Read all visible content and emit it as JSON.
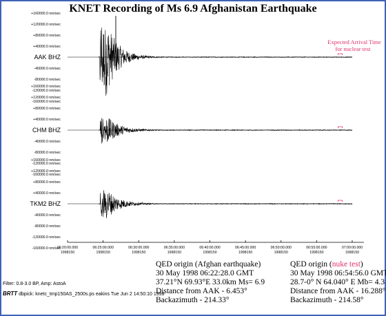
{
  "title": "KNET Recording of Ms 6.9 Afghanistan Earthquake",
  "amplitude_unit_suffix": "nm/sec",
  "colors": {
    "frame": "#3f62b8",
    "trace": "#000000",
    "baseline": "#555555",
    "annotation": "#e0306a"
  },
  "chart_data": {
    "type": "line",
    "title": "KNET Recording of Ms 6.9 Afghanistan Earthquake",
    "y_ticks": [
      "+160000.0",
      "+120000.0",
      "+80000.0",
      "+40000.0",
      "-40000.0",
      "-80000.0",
      "-120000.0",
      "-160000.0"
    ],
    "ylim": [
      -160000,
      160000
    ],
    "x_ticks": [
      {
        "time": "06:20:00.000",
        "day": "1998150"
      },
      {
        "time": "06:25:00.000",
        "day": "1998150"
      },
      {
        "time": "06:30:00.000",
        "day": "1998150"
      },
      {
        "time": "06:35:00.000",
        "day": "1998150"
      },
      {
        "time": "06:40:00.000",
        "day": "1998150"
      },
      {
        "time": "06:45:00.000",
        "day": "1998150"
      },
      {
        "time": "06:50:00.000",
        "day": "1998150"
      },
      {
        "time": "06:55:00.000",
        "day": "1998150"
      },
      {
        "time": "07:00:00.000",
        "day": "1998150"
      }
    ],
    "series": [
      {
        "name": "AAK BHZ",
        "onset_min": 4.55,
        "peak_nm_s": 150000,
        "decay_min": 1.6
      },
      {
        "name": "CHM BHZ",
        "onset_min": 4.6,
        "peak_nm_s": 55000,
        "decay_min": 1.8
      },
      {
        "name": "TKM2 BHZ",
        "onset_min": 4.6,
        "peak_nm_s": 60000,
        "decay_min": 1.7
      }
    ],
    "expected_arrival_min": 38.3,
    "annotation": "Expected Arrival Time for nuclear test"
  },
  "footer": {
    "filter_text": "Filter: 0.8-3.0 BP, Amp: AstoA",
    "brtt_logo": "BRTT",
    "file_text": "dbpick: knetc_tmp150AS_2500s.ps eakins Tue Jun 2 14:50:10 1998"
  },
  "qed_quake": {
    "heading": "QED origin (Afghan earthquake)",
    "date": "30 May 1998   06:22:28.0 GMT",
    "location": "37.21°N   69.93°E 33.0km Ms= 6.9",
    "distance": "Distance from AAK - 6.453°",
    "backazimuth": "Backazimuth - 214.33°"
  },
  "qed_nuke": {
    "heading_prefix": "QED origin (",
    "heading_highlight": "nuke test",
    "heading_suffix": ")",
    "date": "30 May 1998   06:54:56.0 GMT",
    "location": "28.7-0° N   64.040° E Mb= 4.3",
    "distance": "Distance from AAK - 16.288°",
    "backazimuth": "Backazimuth - 214.58°"
  }
}
